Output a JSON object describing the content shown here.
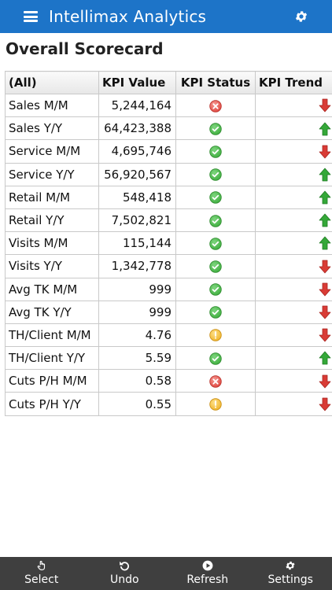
{
  "header": {
    "title": "Intellimax Analytics"
  },
  "page": {
    "title": "Overall Scorecard"
  },
  "table": {
    "columns": [
      "(All)",
      "KPI Value",
      "KPI Status",
      "KPI Trend"
    ],
    "rows": [
      {
        "name": "Sales M/M",
        "value": "5,244,164",
        "status": "bad",
        "trend": "down"
      },
      {
        "name": "Sales Y/Y",
        "value": "64,423,388",
        "status": "good",
        "trend": "up"
      },
      {
        "name": "Service M/M",
        "value": "4,695,746",
        "status": "good",
        "trend": "down"
      },
      {
        "name": "Service Y/Y",
        "value": "56,920,567",
        "status": "good",
        "trend": "up"
      },
      {
        "name": "Retail M/M",
        "value": "548,418",
        "status": "good",
        "trend": "up"
      },
      {
        "name": "Retail Y/Y",
        "value": "7,502,821",
        "status": "good",
        "trend": "up"
      },
      {
        "name": "Visits M/M",
        "value": "115,144",
        "status": "good",
        "trend": "up"
      },
      {
        "name": "Visits Y/Y",
        "value": "1,342,778",
        "status": "good",
        "trend": "down"
      },
      {
        "name": "Avg TK M/M",
        "value": "999",
        "status": "good",
        "trend": "down"
      },
      {
        "name": "Avg TK Y/Y",
        "value": "999",
        "status": "good",
        "trend": "down"
      },
      {
        "name": "TH/Client M/M",
        "value": "4.76",
        "status": "warning",
        "trend": "down"
      },
      {
        "name": "TH/Client Y/Y",
        "value": "5.59",
        "status": "good",
        "trend": "up"
      },
      {
        "name": "Cuts P/H M/M",
        "value": "0.58",
        "status": "bad",
        "trend": "down"
      },
      {
        "name": "Cuts P/H Y/Y",
        "value": "0.55",
        "status": "warning",
        "trend": "down"
      }
    ]
  },
  "toolbar": {
    "items": [
      {
        "label": "Select",
        "icon": "hand-pointer-icon"
      },
      {
        "label": "Undo",
        "icon": "undo-icon"
      },
      {
        "label": "Refresh",
        "icon": "play-circle-icon"
      },
      {
        "label": "Settings",
        "icon": "gear-icon"
      }
    ]
  },
  "colors": {
    "header_bg": "#1d74c8",
    "toolbar_bg": "#3f3f3f",
    "good": "#3fae3f",
    "bad": "#e0463f",
    "warning": "#f0b429",
    "trend_up": "#34a838",
    "trend_down": "#d93b35"
  }
}
